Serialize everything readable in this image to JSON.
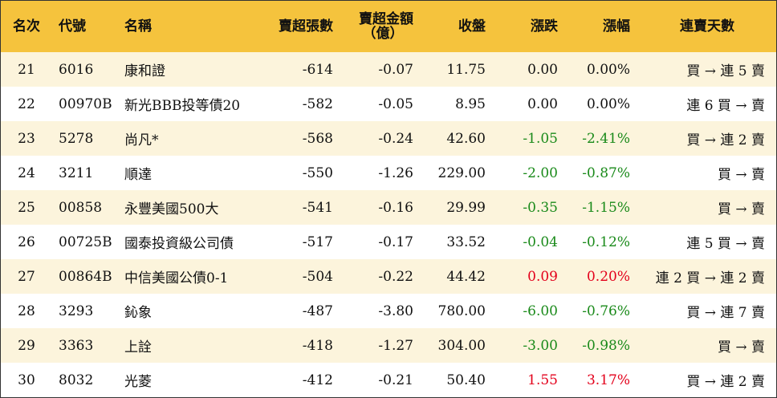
{
  "headers": {
    "rank": "名次",
    "code": "代號",
    "name": "名稱",
    "sell_qty": "賣超張數",
    "sell_amt_line1": "賣超金額",
    "sell_amt_line2": "（億）",
    "close": "收盤",
    "change": "漲跌",
    "pct": "漲幅",
    "days": "連賣天數"
  },
  "colors": {
    "header_bg": "#f5c33d",
    "odd_row_bg": "#fcf4dc",
    "up": "#e3001b",
    "down": "#1a8a1a"
  },
  "rows": [
    {
      "rank": "21",
      "code": "6016",
      "name": "康和證",
      "sell_qty": "-614",
      "sell_amt": "-0.07",
      "close": "11.75",
      "change": "0.00",
      "pct": "0.00%",
      "days": "買 → 連 5 賣",
      "trend": "zero"
    },
    {
      "rank": "22",
      "code": "00970B",
      "name": "新光BBB投等債20",
      "sell_qty": "-582",
      "sell_amt": "-0.05",
      "close": "8.95",
      "change": "0.00",
      "pct": "0.00%",
      "days": "連 6 買 → 賣",
      "trend": "zero"
    },
    {
      "rank": "23",
      "code": "5278",
      "name": "尚凡*",
      "sell_qty": "-568",
      "sell_amt": "-0.24",
      "close": "42.60",
      "change": "-1.05",
      "pct": "-2.41%",
      "days": "買 → 連 2 賣",
      "trend": "neg"
    },
    {
      "rank": "24",
      "code": "3211",
      "name": "順達",
      "sell_qty": "-550",
      "sell_amt": "-1.26",
      "close": "229.00",
      "change": "-2.00",
      "pct": "-0.87%",
      "days": "買 → 賣",
      "trend": "neg"
    },
    {
      "rank": "25",
      "code": "00858",
      "name": "永豐美國500大",
      "sell_qty": "-541",
      "sell_amt": "-0.16",
      "close": "29.99",
      "change": "-0.35",
      "pct": "-1.15%",
      "days": "買 → 賣",
      "trend": "neg"
    },
    {
      "rank": "26",
      "code": "00725B",
      "name": "國泰投資級公司債",
      "sell_qty": "-517",
      "sell_amt": "-0.17",
      "close": "33.52",
      "change": "-0.04",
      "pct": "-0.12%",
      "days": "連 5 買 → 賣",
      "trend": "neg"
    },
    {
      "rank": "27",
      "code": "00864B",
      "name": "中信美國公債0-1",
      "sell_qty": "-504",
      "sell_amt": "-0.22",
      "close": "44.42",
      "change": "0.09",
      "pct": "0.20%",
      "days": "連 2 買 → 連 2 賣",
      "trend": "pos"
    },
    {
      "rank": "28",
      "code": "3293",
      "name": "鈊象",
      "sell_qty": "-487",
      "sell_amt": "-3.80",
      "close": "780.00",
      "change": "-6.00",
      "pct": "-0.76%",
      "days": "買 → 連 7 賣",
      "trend": "neg"
    },
    {
      "rank": "29",
      "code": "3363",
      "name": "上詮",
      "sell_qty": "-418",
      "sell_amt": "-1.27",
      "close": "304.00",
      "change": "-3.00",
      "pct": "-0.98%",
      "days": "買 → 賣",
      "trend": "neg"
    },
    {
      "rank": "30",
      "code": "8032",
      "name": "光菱",
      "sell_qty": "-412",
      "sell_amt": "-0.21",
      "close": "50.40",
      "change": "1.55",
      "pct": "3.17%",
      "days": "買 → 連 2 賣",
      "trend": "pos"
    }
  ]
}
